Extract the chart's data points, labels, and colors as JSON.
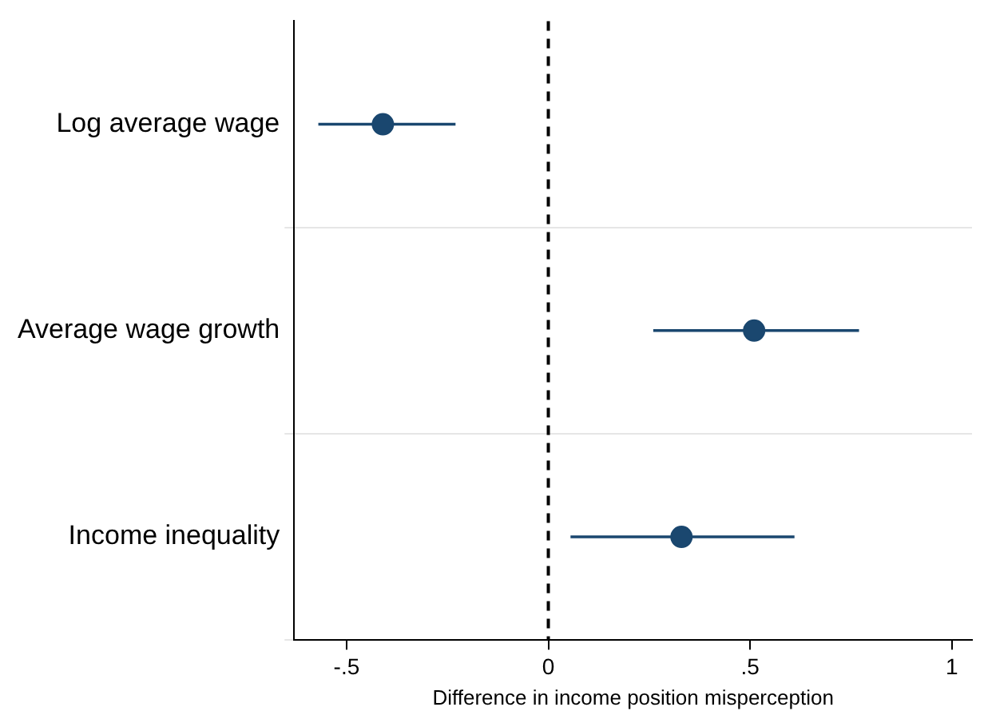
{
  "chart_data": {
    "type": "scatter",
    "orientation": "horizontal",
    "xlabel": "Difference in income position misperception",
    "categories": [
      "Log average wage",
      "Average wage growth",
      "Income inequality"
    ],
    "values": [
      -0.41,
      0.51,
      0.33
    ],
    "errors": [
      [
        -0.57,
        -0.23
      ],
      [
        0.26,
        0.77
      ],
      [
        0.055,
        0.61
      ]
    ],
    "color": "#1a476f",
    "marker": "circle",
    "xlim": [
      -0.63,
      1.05
    ],
    "xticks": [
      {
        "value": -0.5,
        "label": "-.5"
      },
      0,
      {
        "value": 0.5,
        "label": ".5"
      },
      1
    ],
    "ref_lines": [
      {
        "axis": "x",
        "value": 0,
        "color": "#000000",
        "line_style": "dashed"
      }
    ],
    "grid": "y",
    "legend": false
  }
}
